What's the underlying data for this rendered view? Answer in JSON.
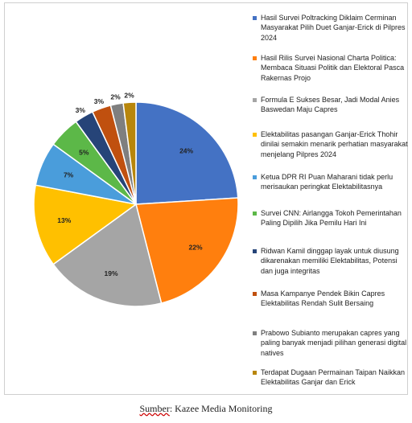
{
  "chart_data": {
    "type": "pie",
    "title": "",
    "slices": [
      {
        "label": "Hasil Survei Poltracking Diklaim Cerminan Masyarakat Pilih Duet Ganjar-Erick di Pilpres 2024",
        "value": 24,
        "value_label": "24%",
        "color": "#4472C4"
      },
      {
        "label": "Hasil Rilis Survei Nasional Charta Politica: Membaca Situasi Politik dan Elektoral Pasca Rakernas Projo",
        "value": 22,
        "value_label": "22%",
        "color": "#FF7F0E"
      },
      {
        "label": "Formula E Sukses Besar, Jadi Modal Anies Baswedan Maju Capres",
        "value": 19,
        "value_label": "19%",
        "color": "#A5A5A5"
      },
      {
        "label": "Elektabilitas pasangan Ganjar-Erick Thohir dinilai semakin menarik perhatian masyarakat menjelang Pilpres 2024",
        "value": 13,
        "value_label": "13%",
        "color": "#FFC000"
      },
      {
        "label": "Ketua DPR RI Puan Maharani tidak perlu merisaukan peringkat Elektabilitasnya",
        "value": 7,
        "value_label": "7%",
        "color": "#4A9DDB"
      },
      {
        "label": "Survei CNN: Airlangga Tokoh Pemerintahan Paling Dipilih Jika Pemilu Hari Ini",
        "value": 5,
        "value_label": "5%",
        "color": "#5CB848"
      },
      {
        "label": "Ridwan Kamil dinggap layak untuk diusung dikarenakan memiliki Elektabilitas, Potensi dan juga integritas",
        "value": 3,
        "value_label": "3%",
        "color": "#264478"
      },
      {
        "label": "Masa Kampanye Pendek Bikin Capres Elektabilitas Rendah Sulit Bersaing",
        "value": 3,
        "value_label": "3%",
        "color": "#C0500F"
      },
      {
        "label": "Prabowo Subianto merupakan capres yang paling banyak menjadi pilihan generasi digital natives",
        "value": 2,
        "value_label": "2%",
        "color": "#7F7F7F"
      },
      {
        "label": "Terdapat Dugaan Permainan Taipan Naikkan Elektabilitas Ganjar dan Erick",
        "value": 2,
        "value_label": "2%",
        "color": "#B8860B"
      }
    ],
    "legend_position": "right"
  },
  "source": {
    "prefix": "Sumber",
    "rest": ": Kazee Media Monitoring"
  }
}
